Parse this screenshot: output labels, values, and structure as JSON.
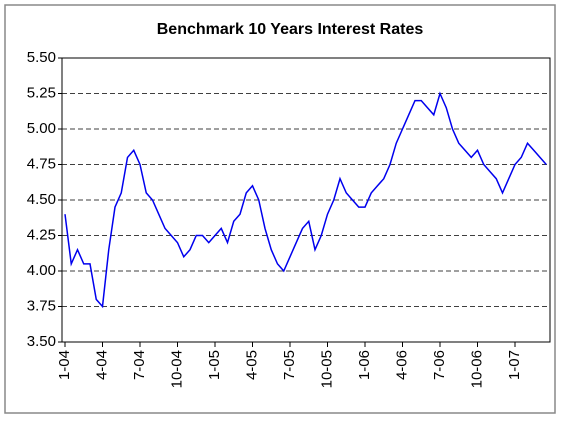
{
  "chart_data": {
    "type": "line",
    "title": "Benchmark 10 Years Interest Rates",
    "categories": [
      "1-04",
      null,
      null,
      null,
      null,
      null,
      "4-04",
      null,
      null,
      null,
      null,
      null,
      "7-04",
      null,
      null,
      null,
      null,
      null,
      "10-04",
      null,
      null,
      null,
      null,
      null,
      "1-05",
      null,
      null,
      null,
      null,
      null,
      "4-05",
      null,
      null,
      null,
      null,
      null,
      "7-05",
      null,
      null,
      null,
      null,
      null,
      "10-05",
      null,
      null,
      null,
      null,
      null,
      "1-06",
      null,
      null,
      null,
      null,
      null,
      "4-06",
      null,
      null,
      null,
      null,
      null,
      "7-06",
      null,
      null,
      null,
      null,
      null,
      "10-06",
      null,
      null,
      null,
      null,
      null,
      "1-07",
      null,
      null,
      null,
      null,
      null
    ],
    "values": [
      4.4,
      4.05,
      4.15,
      4.05,
      4.05,
      3.8,
      3.75,
      4.15,
      4.45,
      4.55,
      4.8,
      4.85,
      4.75,
      4.55,
      4.5,
      4.4,
      4.3,
      4.25,
      4.2,
      4.1,
      4.15,
      4.25,
      4.25,
      4.2,
      4.25,
      4.3,
      4.2,
      4.35,
      4.4,
      4.55,
      4.6,
      4.5,
      4.3,
      4.15,
      4.05,
      4.0,
      4.1,
      4.2,
      4.3,
      4.35,
      4.15,
      4.25,
      4.4,
      4.5,
      4.65,
      4.55,
      4.5,
      4.45,
      4.45,
      4.55,
      4.6,
      4.65,
      4.75,
      4.9,
      5.0,
      5.1,
      5.2,
      5.2,
      5.15,
      5.1,
      5.25,
      5.15,
      5.0,
      4.9,
      4.85,
      4.8,
      4.85,
      4.75,
      4.7,
      4.65,
      4.55,
      4.65,
      4.75,
      4.8,
      4.9,
      4.85,
      4.8,
      4.75
    ],
    "color": "#0000ee",
    "ylim": [
      3.5,
      5.5
    ],
    "yticks": [
      {
        "value": 3.5,
        "label": "3.50"
      },
      3.75,
      {
        "value": 4,
        "label": "4.00"
      },
      4.25,
      {
        "value": 4.5,
        "label": "4.50"
      },
      4.75,
      {
        "value": 5,
        "label": "5.00"
      },
      5.25,
      {
        "value": 5.5,
        "label": "5.50"
      }
    ],
    "grid": true
  }
}
